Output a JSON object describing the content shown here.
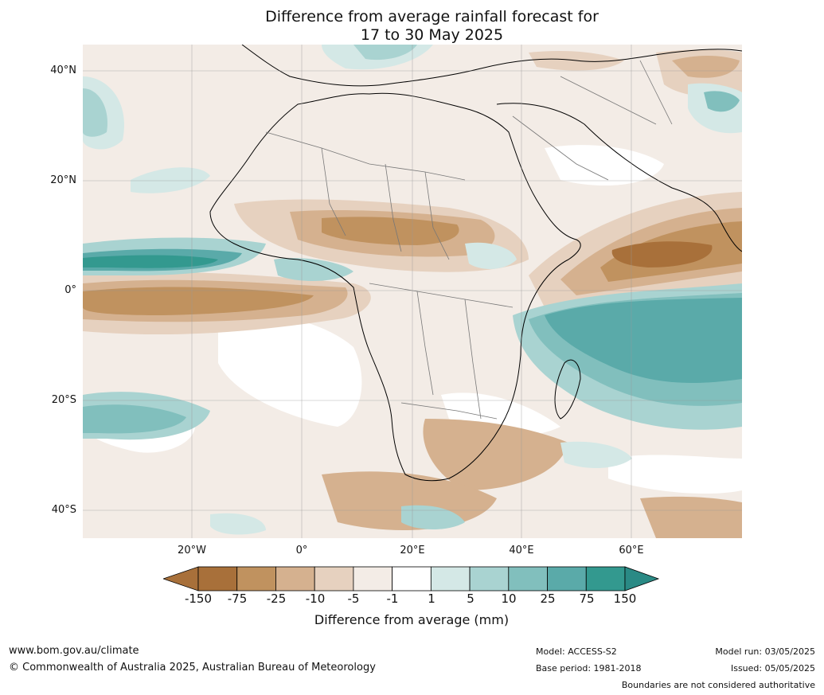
{
  "title": {
    "line1": "Difference from average rainfall forecast for",
    "line2": "17 to 30 May 2025"
  },
  "map": {
    "lat_labels": [
      "40°N",
      "20°N",
      "0°",
      "20°S",
      "40°S"
    ],
    "lon_labels": [
      "20°W",
      "0°",
      "20°E",
      "40°E",
      "60°E"
    ],
    "gridlines": true
  },
  "legend": {
    "label": "Difference from average (mm)",
    "ticks": [
      "-150",
      "-75",
      "-25",
      "-10",
      "-5",
      "-1",
      "1",
      "5",
      "10",
      "25",
      "75",
      "150"
    ],
    "colors": [
      "#a8703a",
      "#c0925f",
      "#d5b18f",
      "#e6d1bf",
      "#f3ece6",
      "#ffffff",
      "#d4e8e6",
      "#a9d3d1",
      "#81bfbd",
      "#5aaaa9",
      "#33998f",
      "#2a8a85"
    ],
    "extend": "both"
  },
  "footer": {
    "url": "www.bom.gov.au/climate",
    "copyright": "© Commonwealth of Australia 2025, Australian Bureau of Meteorology",
    "model": "Model: ACCESS-S2",
    "base_period": "Base period: 1981-2018",
    "model_run": "Model run: 03/05/2025",
    "issued": "Issued: 05/05/2025",
    "disclaimer": "Boundaries are not considered authoritative"
  }
}
